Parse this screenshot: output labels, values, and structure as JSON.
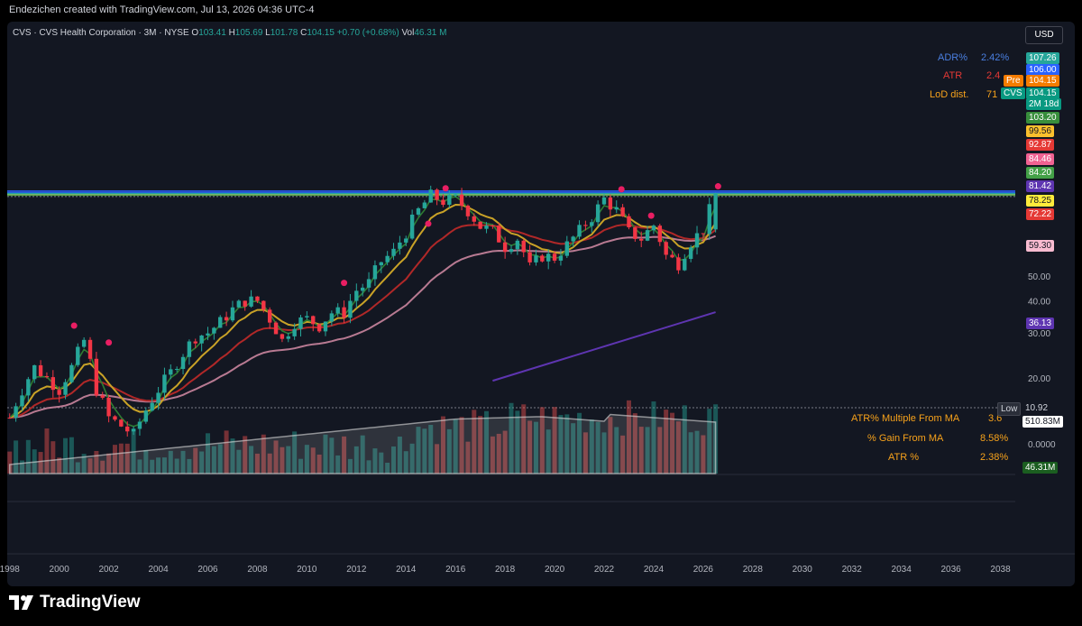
{
  "header": {
    "attribution": "Endezichen created with TradingView.com, Jul 13, 2026 04:36 UTC-4"
  },
  "legend": {
    "symbol": "CVS · CVS Health Corporation · 3M · NYSE",
    "open_label": "O",
    "open": "103.41",
    "high_label": "H",
    "high": "105.69",
    "low_label": "L",
    "low": "101.78",
    "close_label": "C",
    "close": "104.15",
    "change": "+0.70 (+0.68%)",
    "vol_label": "Vol",
    "volume": "46.31 M"
  },
  "currency_button": "USD",
  "overlay_labels": {
    "adr": "ADR%",
    "adr_value": "2.42%",
    "atr": "ATR",
    "atr_value": "2.4",
    "lod": "LoD dist.",
    "lod_value": "71"
  },
  "price_tags": [
    {
      "text": "107.26",
      "color": "#26a69a",
      "price": 107.26
    },
    {
      "text": "106.00",
      "color": "#2962ff",
      "price": 106.0
    },
    {
      "text": "104.15",
      "color": "#f57c00",
      "price": 104.15,
      "prefix": "Pre"
    },
    {
      "text": "104.15",
      "color": "#089981",
      "price": 104.15,
      "prefix": "CVS",
      "sub": "2M 18d"
    },
    {
      "text": "103.20",
      "color": "#388e3c",
      "price": 103.2
    },
    {
      "text": "99.56",
      "color": "#fbc02d",
      "price": 99.56,
      "dark_text": true
    },
    {
      "text": "92.87",
      "color": "#e53935",
      "price": 92.87
    },
    {
      "text": "84.46",
      "color": "#f06292",
      "price": 84.46
    },
    {
      "text": "84.20",
      "color": "#43a047",
      "price": 84.2
    },
    {
      "text": "81.42",
      "color": "#5e35b1",
      "price": 81.42
    },
    {
      "text": "78.25",
      "color": "#ffeb3b",
      "price": 78.25,
      "dark_text": true
    },
    {
      "text": "72.22",
      "color": "#e53935",
      "price": 72.22
    },
    {
      "text": "59.30",
      "color": "#f8bbd0",
      "price": 59.3,
      "dark_text": true
    },
    {
      "text": "36.13",
      "color": "#5e35b1",
      "price": 36.13
    }
  ],
  "low_tag": {
    "label": "Low",
    "value": "10.92"
  },
  "volume_tags": {
    "avg": "510.83M",
    "current": "46.31M",
    "zero": "0.0000"
  },
  "stats": [
    {
      "label": "ATR% Multiple From MA",
      "value": "3.6"
    },
    {
      "label": "% Gain From MA",
      "value": "8.58%"
    },
    {
      "label": "ATR %",
      "value": "2.38%"
    }
  ],
  "brand": "TradingView",
  "chart_data": {
    "type": "candlestick",
    "timeframe": "3M",
    "yscale": "log",
    "ytick_labels": [
      "20.00",
      "30.00",
      "40.00",
      "50.00"
    ],
    "ytick_values": [
      20,
      30,
      40,
      50
    ],
    "xtick_labels": [
      "1998",
      "2000",
      "2002",
      "2004",
      "2006",
      "2008",
      "2010",
      "2012",
      "2014",
      "2016",
      "2018",
      "2020",
      "2022",
      "2024",
      "2026",
      "2028",
      "2030",
      "2032",
      "2034",
      "2036",
      "2038"
    ],
    "xtick_years": [
      1998,
      2000,
      2002,
      2004,
      2006,
      2008,
      2010,
      2012,
      2014,
      2016,
      2018,
      2020,
      2022,
      2024,
      2026,
      2028,
      2030,
      2032,
      2034,
      2036,
      2038
    ],
    "xlim": [
      1998,
      2038.5
    ],
    "quarterly_close_approx": [
      {
        "t": 1998.0,
        "c": 14
      },
      {
        "t": 1998.5,
        "c": 18
      },
      {
        "t": 1999.0,
        "c": 22
      },
      {
        "t": 1999.5,
        "c": 20
      },
      {
        "t": 2000.0,
        "c": 18
      },
      {
        "t": 2000.5,
        "c": 22
      },
      {
        "t": 2001.0,
        "c": 28
      },
      {
        "t": 2001.5,
        "c": 18
      },
      {
        "t": 2002.0,
        "c": 14
      },
      {
        "t": 2002.5,
        "c": 13
      },
      {
        "t": 2003.0,
        "c": 12
      },
      {
        "t": 2003.5,
        "c": 15
      },
      {
        "t": 2004.0,
        "c": 18
      },
      {
        "t": 2004.5,
        "c": 21
      },
      {
        "t": 2005.0,
        "c": 25
      },
      {
        "t": 2005.5,
        "c": 29
      },
      {
        "t": 2006.0,
        "c": 30
      },
      {
        "t": 2006.5,
        "c": 33
      },
      {
        "t": 2007.0,
        "c": 37
      },
      {
        "t": 2007.5,
        "c": 40
      },
      {
        "t": 2008.0,
        "c": 40
      },
      {
        "t": 2008.5,
        "c": 34
      },
      {
        "t": 2009.0,
        "c": 28
      },
      {
        "t": 2009.5,
        "c": 33
      },
      {
        "t": 2010.0,
        "c": 34
      },
      {
        "t": 2010.5,
        "c": 32
      },
      {
        "t": 2011.0,
        "c": 36
      },
      {
        "t": 2011.5,
        "c": 36
      },
      {
        "t": 2012.0,
        "c": 44
      },
      {
        "t": 2012.5,
        "c": 47
      },
      {
        "t": 2013.0,
        "c": 57
      },
      {
        "t": 2013.5,
        "c": 62
      },
      {
        "t": 2014.0,
        "c": 74
      },
      {
        "t": 2014.5,
        "c": 90
      },
      {
        "t": 2015.0,
        "c": 103
      },
      {
        "t": 2015.5,
        "c": 98
      },
      {
        "t": 2016.0,
        "c": 100
      },
      {
        "t": 2016.5,
        "c": 90
      },
      {
        "t": 2017.0,
        "c": 78
      },
      {
        "t": 2017.5,
        "c": 75
      },
      {
        "t": 2018.0,
        "c": 65
      },
      {
        "t": 2018.5,
        "c": 70
      },
      {
        "t": 2019.0,
        "c": 54
      },
      {
        "t": 2019.5,
        "c": 60
      },
      {
        "t": 2020.0,
        "c": 59
      },
      {
        "t": 2020.5,
        "c": 66
      },
      {
        "t": 2021.0,
        "c": 75
      },
      {
        "t": 2021.5,
        "c": 85
      },
      {
        "t": 2022.0,
        "c": 100
      },
      {
        "t": 2022.5,
        "c": 90
      },
      {
        "t": 2023.0,
        "c": 74
      },
      {
        "t": 2023.5,
        "c": 70
      },
      {
        "t": 2024.0,
        "c": 79
      },
      {
        "t": 2024.5,
        "c": 60
      },
      {
        "t": 2025.0,
        "c": 56
      },
      {
        "t": 2025.5,
        "c": 68
      },
      {
        "t": 2026.0,
        "c": 76
      },
      {
        "t": 2026.5,
        "c": 104.15
      }
    ],
    "volume_label": "Vol"
  }
}
